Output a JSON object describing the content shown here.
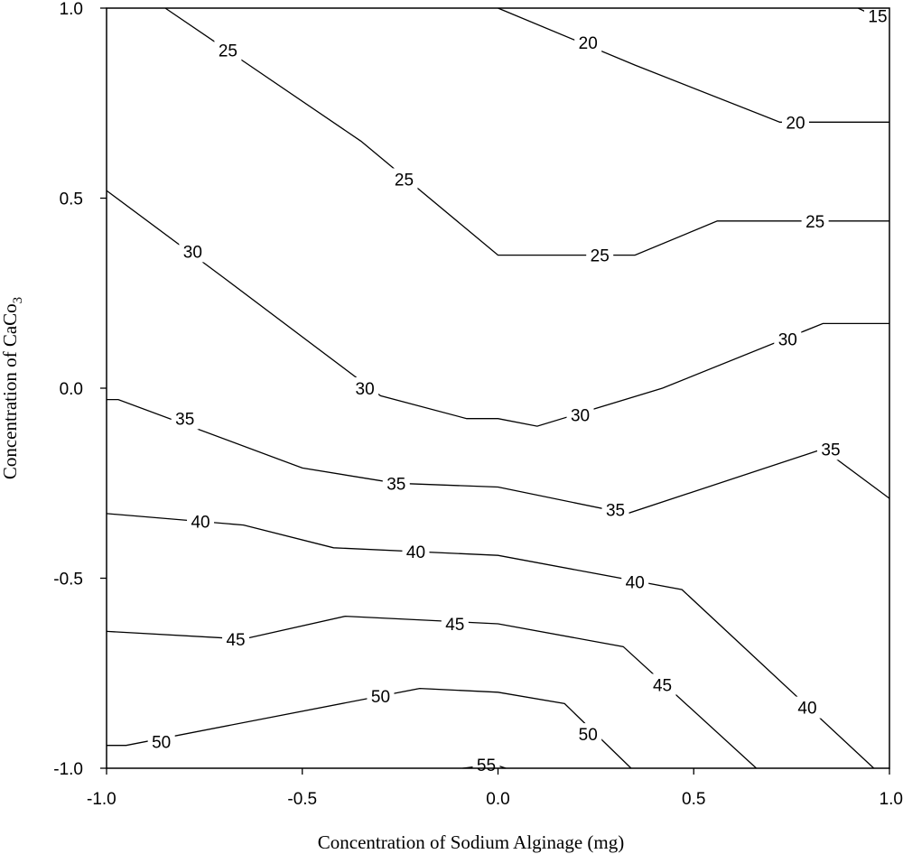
{
  "chart_data": {
    "type": "contour",
    "xlabel": "Concentration of Sodium Alginage (mg)",
    "ylabel_main": "Concentration of CaCo",
    "ylabel_sub": "3",
    "xlim": [
      -1.0,
      1.0
    ],
    "ylim": [
      -1.0,
      1.0
    ],
    "xticks": [
      "-1.0",
      "-0.5",
      "0.0",
      "0.5",
      "1.0"
    ],
    "yticks": [
      "-1.0",
      "-0.5",
      "0.0",
      "0.5",
      "1.0"
    ],
    "grid": false,
    "contours": [
      {
        "level": 15,
        "label": "15",
        "points": [
          [
            0.92,
            1.0
          ],
          [
            0.96,
            0.98
          ],
          [
            1.0,
            0.98
          ]
        ],
        "labels": [
          {
            "text": "15",
            "x": 0.97,
            "y": 0.98
          }
        ]
      },
      {
        "level": 20,
        "label": "20",
        "points": [
          [
            0.0,
            1.0
          ],
          [
            0.35,
            0.85
          ],
          [
            0.72,
            0.7
          ],
          [
            1.0,
            0.7
          ]
        ],
        "labels": [
          {
            "text": "20",
            "x": 0.23,
            "y": 0.91
          },
          {
            "text": "20",
            "x": 0.76,
            "y": 0.7
          }
        ]
      },
      {
        "level": 25,
        "label": "25",
        "points": [
          [
            -0.85,
            1.0
          ],
          [
            -0.35,
            0.65
          ],
          [
            0.0,
            0.35
          ],
          [
            0.35,
            0.35
          ],
          [
            0.56,
            0.44
          ],
          [
            1.0,
            0.44
          ]
        ],
        "labels": [
          {
            "text": "25",
            "x": -0.69,
            "y": 0.89
          },
          {
            "text": "25",
            "x": -0.24,
            "y": 0.55
          },
          {
            "text": "25",
            "x": 0.26,
            "y": 0.35
          },
          {
            "text": "25",
            "x": 0.81,
            "y": 0.44
          }
        ]
      },
      {
        "level": 30,
        "label": "30",
        "points": [
          [
            -1.0,
            0.52
          ],
          [
            -0.7,
            0.29
          ],
          [
            -0.3,
            -0.02
          ],
          [
            -0.08,
            -0.08
          ],
          [
            0.0,
            -0.08
          ],
          [
            0.1,
            -0.1
          ],
          [
            0.42,
            0.0
          ],
          [
            0.83,
            0.17
          ],
          [
            1.0,
            0.17
          ]
        ],
        "labels": [
          {
            "text": "30",
            "x": -0.78,
            "y": 0.36
          },
          {
            "text": "30",
            "x": -0.34,
            "y": 0.0
          },
          {
            "text": "30",
            "x": 0.21,
            "y": -0.07
          },
          {
            "text": "30",
            "x": 0.74,
            "y": 0.13
          }
        ]
      },
      {
        "level": 35,
        "label": "35",
        "points": [
          [
            -1.0,
            -0.03
          ],
          [
            -0.97,
            -0.03
          ],
          [
            -0.5,
            -0.21
          ],
          [
            -0.26,
            -0.25
          ],
          [
            0.0,
            -0.26
          ],
          [
            0.33,
            -0.33
          ],
          [
            0.83,
            -0.16
          ],
          [
            1.0,
            -0.29
          ]
        ],
        "labels": [
          {
            "text": "35",
            "x": -0.8,
            "y": -0.08
          },
          {
            "text": "35",
            "x": -0.26,
            "y": -0.25
          },
          {
            "text": "35",
            "x": 0.3,
            "y": -0.32
          },
          {
            "text": "35",
            "x": 0.85,
            "y": -0.16
          }
        ]
      },
      {
        "level": 40,
        "label": "40",
        "points": [
          [
            -1.0,
            -0.33
          ],
          [
            -0.65,
            -0.36
          ],
          [
            -0.42,
            -0.42
          ],
          [
            0.0,
            -0.44
          ],
          [
            0.47,
            -0.53
          ],
          [
            0.96,
            -1.0
          ]
        ],
        "labels": [
          {
            "text": "40",
            "x": -0.76,
            "y": -0.35
          },
          {
            "text": "40",
            "x": -0.21,
            "y": -0.43
          },
          {
            "text": "40",
            "x": 0.35,
            "y": -0.51
          },
          {
            "text": "40",
            "x": 0.79,
            "y": -0.84
          }
        ]
      },
      {
        "level": 45,
        "label": "45",
        "points": [
          [
            -1.0,
            -0.64
          ],
          [
            -0.65,
            -0.66
          ],
          [
            -0.39,
            -0.6
          ],
          [
            0.0,
            -0.62
          ],
          [
            0.32,
            -0.68
          ],
          [
            0.66,
            -1.0
          ]
        ],
        "labels": [
          {
            "text": "45",
            "x": -0.67,
            "y": -0.66
          },
          {
            "text": "45",
            "x": -0.11,
            "y": -0.62
          },
          {
            "text": "45",
            "x": 0.42,
            "y": -0.78
          }
        ]
      },
      {
        "level": 50,
        "label": "50",
        "points": [
          [
            -1.0,
            -0.94
          ],
          [
            -0.95,
            -0.94
          ],
          [
            -0.2,
            -0.79
          ],
          [
            0.0,
            -0.8
          ],
          [
            0.17,
            -0.83
          ],
          [
            0.34,
            -1.0
          ]
        ],
        "labels": [
          {
            "text": "50",
            "x": -0.86,
            "y": -0.93
          },
          {
            "text": "50",
            "x": -0.3,
            "y": -0.81
          },
          {
            "text": "50",
            "x": 0.23,
            "y": -0.91
          }
        ]
      },
      {
        "level": 55,
        "label": "55",
        "points": [
          [
            -0.09,
            -1.0
          ],
          [
            -0.01,
            -0.99
          ],
          [
            0.02,
            -1.0
          ]
        ],
        "labels": [
          {
            "text": "55",
            "x": -0.03,
            "y": -0.99
          }
        ]
      }
    ]
  }
}
